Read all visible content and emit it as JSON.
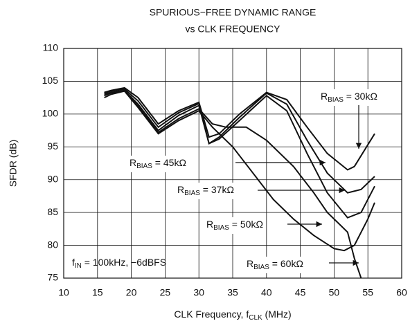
{
  "chart_data": {
    "type": "line",
    "title": [
      "SPURIOUS−FREE DYNAMIC RANGE",
      "vs CLK FREQUENCY"
    ],
    "x_label": {
      "main": "CLK Frequency, f",
      "sub": "CLK",
      "rest": " (MHz)"
    },
    "y_label": "SFDR (dB)",
    "xlim": [
      10,
      60
    ],
    "xticks": [
      10,
      15,
      20,
      25,
      30,
      35,
      40,
      45,
      50,
      55,
      60
    ],
    "ylim": [
      75,
      110
    ],
    "yticks": [
      75,
      80,
      85,
      90,
      95,
      100,
      105,
      110
    ],
    "grid": true,
    "color": "#111111",
    "series": [
      {
        "x": [
          16,
          17,
          19,
          21,
          24,
          27,
          30,
          31.5,
          33,
          36,
          40,
          43,
          46,
          49,
          52,
          53,
          56
        ],
        "values": [
          103.3,
          103.6,
          104,
          102.5,
          98.5,
          100.5,
          101.8,
          96.5,
          97,
          100,
          103.3,
          102.2,
          98,
          94,
          91.5,
          92,
          97
        ]
      },
      {
        "x": [
          16,
          17,
          19,
          21,
          24,
          27,
          30,
          31.5,
          33,
          36,
          40,
          43,
          46,
          49,
          52,
          54,
          56
        ],
        "values": [
          103.2,
          103.5,
          103.8,
          102,
          98,
          100.2,
          101.6,
          95.5,
          96.5,
          99.5,
          103.2,
          101.5,
          96,
          91,
          88,
          88.5,
          90.5
        ]
      },
      {
        "x": [
          16,
          17,
          19,
          21,
          24,
          27,
          30,
          31.5,
          33,
          36,
          40,
          43,
          46,
          49,
          52,
          54,
          56
        ],
        "values": [
          103,
          103.3,
          103.6,
          101.5,
          97.5,
          99.8,
          101.3,
          95.5,
          96.2,
          99,
          102.8,
          100.5,
          94,
          88,
          84.2,
          85,
          89
        ]
      },
      {
        "x": [
          16,
          17,
          19,
          21,
          24,
          27,
          30,
          32,
          35,
          38,
          41,
          44,
          47,
          50,
          51.5,
          53,
          55,
          56
        ],
        "values": [
          102.5,
          103,
          103.5,
          101,
          97,
          99,
          100.5,
          98,
          95,
          91,
          87,
          84,
          81.5,
          79.5,
          79.2,
          80,
          84,
          86.5
        ]
      },
      {
        "x": [
          16,
          17,
          19,
          21,
          24,
          27,
          30,
          32,
          34,
          37,
          40,
          44,
          47,
          49,
          51,
          52,
          53,
          54
        ],
        "values": [
          102.8,
          103.2,
          103.6,
          101.2,
          97.2,
          99.3,
          100.8,
          98.5,
          98,
          98,
          96,
          92,
          88,
          85,
          83,
          82,
          78,
          75
        ]
      }
    ],
    "annotations": [
      {
        "main": "R",
        "sub": "BIAS",
        "rest": " = 30kΩ"
      },
      {
        "main": "R",
        "sub": "BIAS",
        "rest": " = 45kΩ"
      },
      {
        "main": "R",
        "sub": "BIAS",
        "rest": " = 37kΩ"
      },
      {
        "main": "R",
        "sub": "BIAS",
        "rest": " = 50kΩ"
      },
      {
        "main": "R",
        "sub": "BIAS",
        "rest": " = 60kΩ"
      },
      {
        "main": "f",
        "sub": "IN",
        "rest": " = 100kHz, −6dBFS"
      }
    ]
  }
}
